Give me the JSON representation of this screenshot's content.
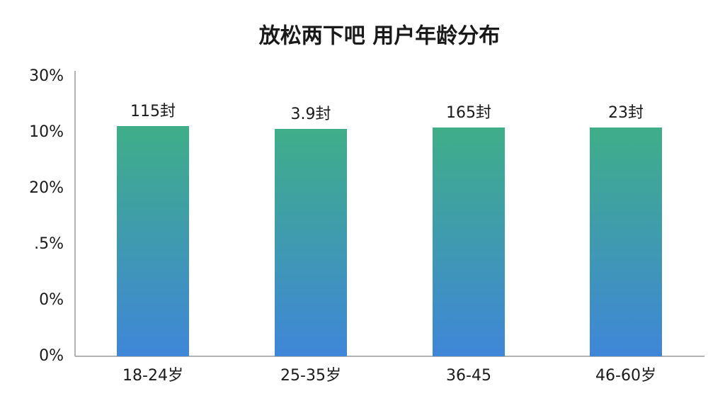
{
  "title": "放松两下吧 用户年龄分布",
  "y_axis_labels": [
    "30%",
    "10%",
    "20%",
    ".5%",
    "0%",
    "0%"
  ],
  "bars": [
    {
      "category": "18-24岁",
      "label": "115封"
    },
    {
      "category": "25-35岁",
      "label": "3.9封"
    },
    {
      "category": "36-45",
      "label": "165封"
    },
    {
      "category": "46-60岁",
      "label": "23封"
    }
  ]
}
